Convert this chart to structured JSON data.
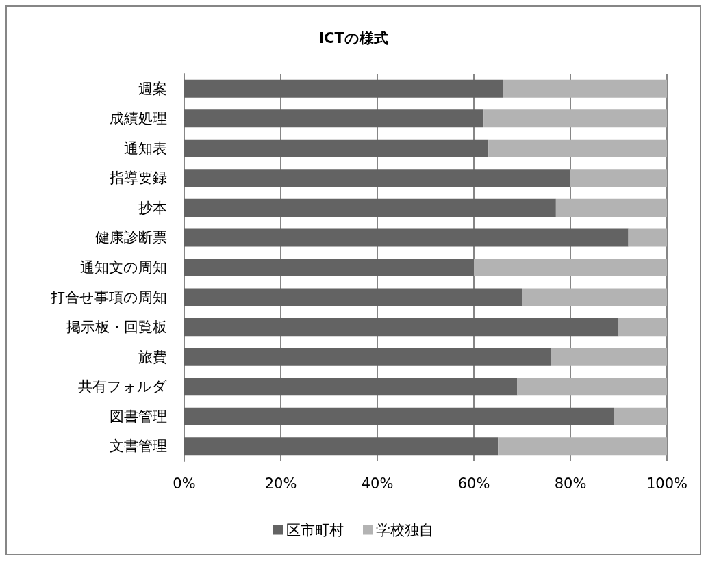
{
  "chart_data": {
    "type": "bar",
    "orientation": "horizontal",
    "stacked": true,
    "title": "ICTの様式",
    "categories": [
      "週案",
      "成績処理",
      "通知表",
      "指導要録",
      "抄本",
      "健康診断票",
      "通知文の周知",
      "打合せ事項の周知",
      "掲示板・回覧板",
      "旅費",
      "共有フォルダ",
      "図書管理",
      "文書管理"
    ],
    "series": [
      {
        "name": "区市町村",
        "color": "#636363",
        "values": [
          66,
          62,
          63,
          80,
          77,
          92,
          60,
          70,
          90,
          76,
          69,
          89,
          65
        ]
      },
      {
        "name": "学校独自",
        "color": "#b3b3b3",
        "values": [
          34,
          38,
          37,
          20,
          23,
          8,
          40,
          30,
          10,
          24,
          31,
          11,
          35
        ]
      }
    ],
    "xlim": [
      0,
      100
    ],
    "xticks": [
      {
        "value": 0,
        "label": "0%"
      },
      {
        "value": 20,
        "label": "20%"
      },
      {
        "value": 40,
        "label": "40%"
      },
      {
        "value": 60,
        "label": "60%"
      },
      {
        "value": 80,
        "label": "80%"
      },
      {
        "value": 100,
        "label": "100%"
      }
    ],
    "grid": "x",
    "legend": "bottom"
  }
}
